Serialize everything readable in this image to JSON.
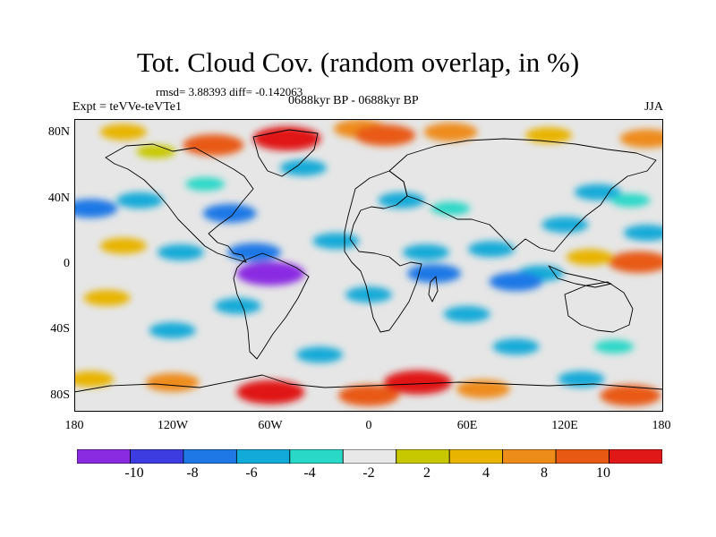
{
  "title": "Tot. Cloud Cov. (random overlap, in %)",
  "stats": "rmsd= 3.88393 diff= -0.142063",
  "experiment": "Expt = teVVe-teVTe1",
  "period": "0688kyr BP - 0688kyr BP",
  "season": "JJA",
  "map": {
    "lat_range": [
      -90,
      90
    ],
    "lon_range": [
      -180,
      180
    ],
    "lat_labels": [
      "80N",
      "40N",
      "0",
      "40S",
      "80S"
    ],
    "lon_labels": [
      "180",
      "120W",
      "60W",
      "0",
      "60E",
      "120E",
      "180"
    ],
    "background_color": "#e6e6e6",
    "coastline_color": "#000000"
  },
  "colorbar": {
    "colors": [
      "#8a2be2",
      "#3c3ce0",
      "#1e78e6",
      "#12aad8",
      "#2ad8c8",
      "#e8e8e8",
      "#c8c800",
      "#e8b400",
      "#ee8c1a",
      "#e85a14",
      "#e01818"
    ],
    "tick_labels": [
      "-10",
      "-8",
      "-6",
      "-4",
      "-2",
      "2",
      "4",
      "8",
      "10"
    ]
  },
  "anomalies": [
    {
      "lon": -5,
      "lat": 84,
      "level": 8
    },
    {
      "lon": -50,
      "lat": 78,
      "level": 10
    },
    {
      "lon": -95,
      "lat": 74,
      "level": 9
    },
    {
      "lon": 10,
      "lat": 80,
      "level": 9
    },
    {
      "lon": 50,
      "lat": 82,
      "level": 8
    },
    {
      "lon": 110,
      "lat": 80,
      "level": 7
    },
    {
      "lon": 170,
      "lat": 78,
      "level": 8
    },
    {
      "lon": -150,
      "lat": 82,
      "level": 7
    },
    {
      "lon": -130,
      "lat": 70,
      "level": 6
    },
    {
      "lon": -40,
      "lat": 60,
      "level": 3
    },
    {
      "lon": -85,
      "lat": 32,
      "level": 2
    },
    {
      "lon": 140,
      "lat": 45,
      "level": 3
    },
    {
      "lon": 160,
      "lat": 40,
      "level": 4
    },
    {
      "lon": 20,
      "lat": 40,
      "level": 3
    },
    {
      "lon": -150,
      "lat": 12,
      "level": 7
    },
    {
      "lon": -115,
      "lat": 8,
      "level": 3
    },
    {
      "lon": -60,
      "lat": -5,
      "level": 0
    },
    {
      "lon": -70,
      "lat": 8,
      "level": 2
    },
    {
      "lon": -80,
      "lat": -25,
      "level": 3
    },
    {
      "lon": -160,
      "lat": -20,
      "level": 7
    },
    {
      "lon": 165,
      "lat": 2,
      "level": 9
    },
    {
      "lon": 135,
      "lat": 5,
      "level": 7
    },
    {
      "lon": 105,
      "lat": -5,
      "level": 3
    },
    {
      "lon": 90,
      "lat": -10,
      "level": 2
    },
    {
      "lon": 75,
      "lat": 10,
      "level": 3
    },
    {
      "lon": 35,
      "lat": 8,
      "level": 3
    },
    {
      "lon": 0,
      "lat": -18,
      "level": 3
    },
    {
      "lon": 40,
      "lat": -5,
      "level": 2
    },
    {
      "lon": -20,
      "lat": 15,
      "level": 3
    },
    {
      "lon": 60,
      "lat": -30,
      "level": 3
    },
    {
      "lon": -120,
      "lat": -40,
      "level": 3
    },
    {
      "lon": 90,
      "lat": -50,
      "level": 3
    },
    {
      "lon": -30,
      "lat": -55,
      "level": 3
    },
    {
      "lon": 150,
      "lat": -50,
      "level": 4
    },
    {
      "lon": -170,
      "lat": -70,
      "level": 7
    },
    {
      "lon": -120,
      "lat": -72,
      "level": 8
    },
    {
      "lon": -60,
      "lat": -78,
      "level": 10
    },
    {
      "lon": 0,
      "lat": -80,
      "level": 9
    },
    {
      "lon": 30,
      "lat": -72,
      "level": 10
    },
    {
      "lon": 70,
      "lat": -76,
      "level": 8
    },
    {
      "lon": 130,
      "lat": -70,
      "level": 3
    },
    {
      "lon": 160,
      "lat": -80,
      "level": 9
    },
    {
      "lon": -170,
      "lat": 35,
      "level": 2
    },
    {
      "lon": -140,
      "lat": 40,
      "level": 3
    },
    {
      "lon": 170,
      "lat": 20,
      "level": 3
    },
    {
      "lon": -100,
      "lat": 50,
      "level": 4
    },
    {
      "lon": 50,
      "lat": 35,
      "level": 4
    },
    {
      "lon": 120,
      "lat": 25,
      "level": 3
    }
  ]
}
